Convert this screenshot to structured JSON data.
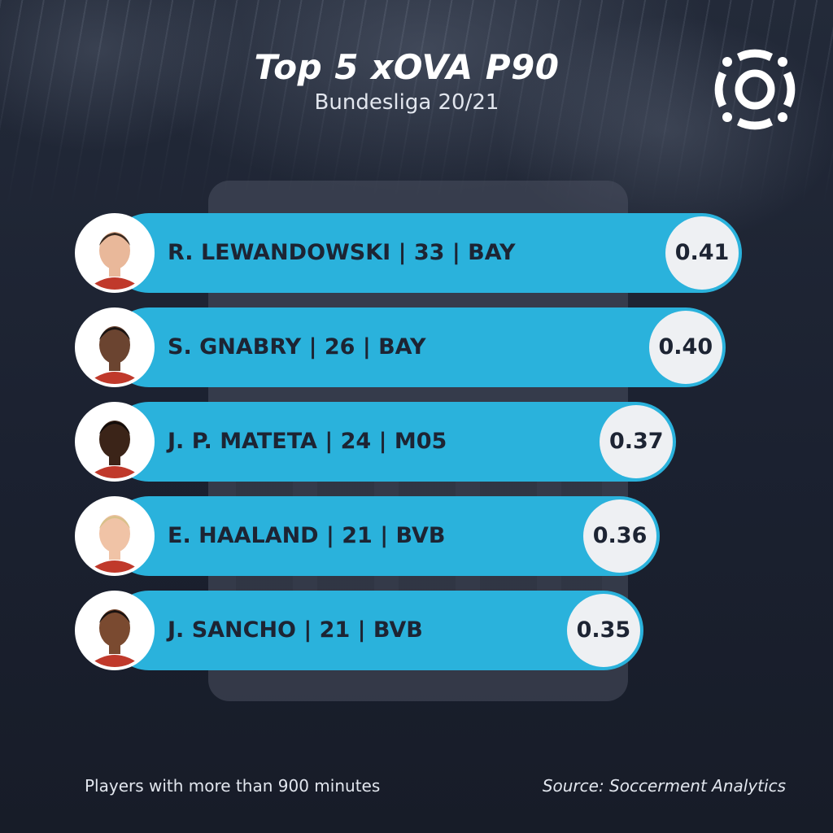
{
  "header": {
    "title": "Top 5 xOVA P90",
    "subtitle": "Bundesliga 20/21"
  },
  "colors": {
    "background": "#1b2130",
    "bar": "#2ab2dc",
    "value_circle": "#eef0f3",
    "label_text": "#1d2433"
  },
  "chart_data": {
    "type": "bar",
    "orientation": "horizontal",
    "title": "Top 5 xOVA P90",
    "subtitle": "Bundesliga 20/21",
    "categories": [
      "R. LEWANDOWSKI | 33 | BAY",
      "S. GNABRY | 26 | BAY",
      "J. P. MATETA | 24 | M05",
      "E. HAALAND | 21 | BVB",
      "J. SANCHO | 21 | BVB"
    ],
    "values": [
      0.41,
      0.4,
      0.37,
      0.36,
      0.35
    ],
    "value_labels": [
      "0.41",
      "0.40",
      "0.37",
      "0.36",
      "0.35"
    ],
    "players": [
      {
        "label": "R. LEWANDOWSKI | 33 | BAY",
        "value": 0.41,
        "value_label": "0.41",
        "skin": "#e9b89a",
        "hair": "#3a2a20"
      },
      {
        "label": "S. GNABRY | 26 | BAY",
        "value": 0.4,
        "value_label": "0.40",
        "skin": "#6b4430",
        "hair": "#1a1412"
      },
      {
        "label": "J. P. MATETA | 24 | M05",
        "value": 0.37,
        "value_label": "0.37",
        "skin": "#3b2418",
        "hair": "#120c0a"
      },
      {
        "label": "E. HAALAND | 21 | BVB",
        "value": 0.36,
        "value_label": "0.36",
        "skin": "#f0c3a6",
        "hair": "#d9c08a"
      },
      {
        "label": "J. SANCHO | 21 | BVB",
        "value": 0.35,
        "value_label": "0.35",
        "skin": "#7a4a30",
        "hair": "#1a1210"
      }
    ]
  },
  "footer": {
    "note": "Players with more than 900 minutes",
    "source": "Source: Soccerment Analytics"
  }
}
